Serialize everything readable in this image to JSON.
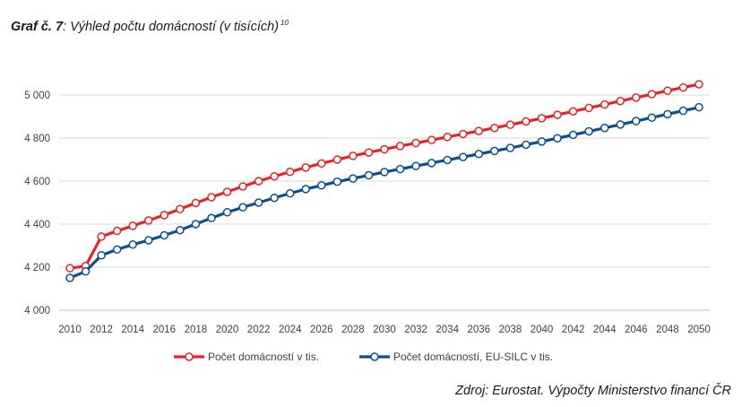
{
  "title": {
    "prefix": "Graf č. 7",
    "text": ": Výhled počtu domácností (v tisících)",
    "footnote": "10"
  },
  "source": "Zdroj: Eurostat. Výpočty Ministerstvo financí ČR",
  "chart_data": {
    "type": "line",
    "title": "Výhled počtu domácností (v tisících)",
    "xlabel": "",
    "ylabel": "",
    "ylim": [
      4000,
      5000
    ],
    "yticks": [
      4000,
      4200,
      4400,
      4600,
      4800,
      5000
    ],
    "ytick_labels": [
      "4 000",
      "4 200",
      "4 400",
      "4 600",
      "4 800",
      "5 000"
    ],
    "x": [
      2010,
      2011,
      2012,
      2013,
      2014,
      2015,
      2016,
      2017,
      2018,
      2019,
      2020,
      2021,
      2022,
      2023,
      2024,
      2025,
      2026,
      2027,
      2028,
      2029,
      2030,
      2031,
      2032,
      2033,
      2034,
      2035,
      2036,
      2037,
      2038,
      2039,
      2040,
      2041,
      2042,
      2043,
      2044,
      2045,
      2046,
      2047,
      2048,
      2049,
      2050
    ],
    "xtick_labels": [
      "2010",
      "2012",
      "2014",
      "2016",
      "2018",
      "2020",
      "2022",
      "2024",
      "2026",
      "2028",
      "2030",
      "2032",
      "2034",
      "2036",
      "2038",
      "2040",
      "2042",
      "2044",
      "2046",
      "2048",
      "2050"
    ],
    "grid": true,
    "legend_position": "bottom",
    "series": [
      {
        "name": "Počet domácností v tis.",
        "color": "#e3242b",
        "values": [
          4195,
          4205,
          4342,
          4368,
          4392,
          4417,
          4442,
          4470,
          4498,
          4525,
          4550,
          4575,
          4600,
          4622,
          4643,
          4663,
          4682,
          4700,
          4717,
          4733,
          4748,
          4763,
          4777,
          4791,
          4805,
          4819,
          4833,
          4847,
          4862,
          4877,
          4892,
          4908,
          4924,
          4940,
          4956,
          4972,
          4988,
          5004,
          5020,
          5035,
          5050
        ]
      },
      {
        "name": "Počet domácností, EU-SILC v tis.",
        "color": "#0d4e8b",
        "values": [
          4150,
          4180,
          4255,
          4282,
          4305,
          4325,
          4348,
          4372,
          4400,
          4428,
          4455,
          4478,
          4500,
          4522,
          4543,
          4563,
          4580,
          4597,
          4612,
          4627,
          4642,
          4656,
          4670,
          4684,
          4698,
          4712,
          4726,
          4740,
          4754,
          4769,
          4784,
          4799,
          4815,
          4831,
          4847,
          4863,
          4879,
          4895,
          4911,
          4927,
          4943
        ]
      }
    ]
  }
}
